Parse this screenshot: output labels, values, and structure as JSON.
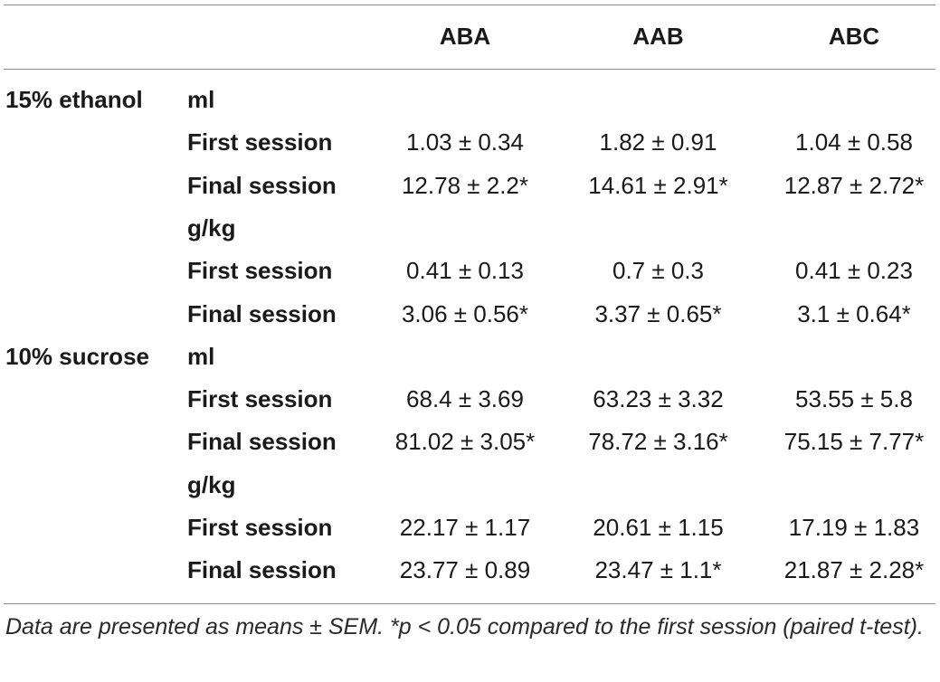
{
  "table": {
    "columns": [
      "ABA",
      "AAB",
      "ABC"
    ],
    "rows": [
      {
        "group": "15% ethanol",
        "label": "ml",
        "kind": "subheader",
        "values": [
          "",
          "",
          ""
        ]
      },
      {
        "group": "",
        "label": "First session",
        "kind": "data",
        "values": [
          "1.03 ± 0.34",
          "1.82 ± 0.91",
          "1.04 ± 0.58"
        ]
      },
      {
        "group": "",
        "label": "Final session",
        "kind": "data",
        "values": [
          "12.78 ± 2.2*",
          "14.61 ± 2.91*",
          "12.87 ± 2.72*"
        ]
      },
      {
        "group": "",
        "label": "g/kg",
        "kind": "subheader",
        "values": [
          "",
          "",
          ""
        ]
      },
      {
        "group": "",
        "label": "First session",
        "kind": "data",
        "values": [
          "0.41 ± 0.13",
          "0.7 ± 0.3",
          "0.41 ± 0.23"
        ]
      },
      {
        "group": "",
        "label": "Final session",
        "kind": "data",
        "values": [
          "3.06 ± 0.56*",
          "3.37 ± 0.65*",
          "3.1 ± 0.64*"
        ]
      },
      {
        "group": "10% sucrose",
        "label": "ml",
        "kind": "subheader",
        "values": [
          "",
          "",
          ""
        ]
      },
      {
        "group": "",
        "label": "First session",
        "kind": "data",
        "values": [
          "68.4 ± 3.69",
          "63.23 ± 3.32",
          "53.55 ± 5.8"
        ]
      },
      {
        "group": "",
        "label": "Final session",
        "kind": "data",
        "values": [
          "81.02 ± 3.05*",
          "78.72 ± 3.16*",
          "75.15 ± 7.77*"
        ]
      },
      {
        "group": "",
        "label": "g/kg",
        "kind": "subheader",
        "values": [
          "",
          "",
          ""
        ]
      },
      {
        "group": "",
        "label": "First session",
        "kind": "data",
        "values": [
          "22.17 ± 1.17",
          "20.61 ± 1.15",
          "17.19 ± 1.83"
        ]
      },
      {
        "group": "",
        "label": "Final session",
        "kind": "data",
        "values": [
          "23.77 ± 0.89",
          "23.47 ± 1.1*",
          "21.87 ± 2.28*"
        ]
      }
    ],
    "footnote": "Data are presented as means ± SEM. *p < 0.05 compared to the first session (paired t-test)."
  }
}
